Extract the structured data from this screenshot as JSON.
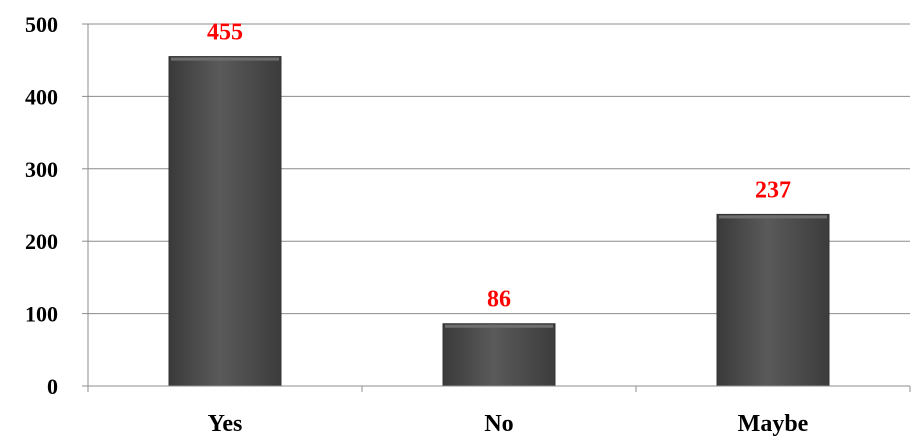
{
  "chart_data": {
    "type": "bar",
    "categories": [
      "Yes",
      "No",
      "Maybe"
    ],
    "values": [
      455,
      86,
      237
    ],
    "data_labels": [
      "455",
      "86",
      "237"
    ],
    "yticks": [
      "0",
      "100",
      "200",
      "300",
      "400",
      "500"
    ],
    "ylim": [
      0,
      500
    ],
    "grid": true,
    "legend": "none",
    "colors": {
      "bar": "#4a4a4a",
      "bar_highlight": "#6e6e6e",
      "data_label": "#ff0000",
      "grid": "#8c8c8c"
    }
  }
}
